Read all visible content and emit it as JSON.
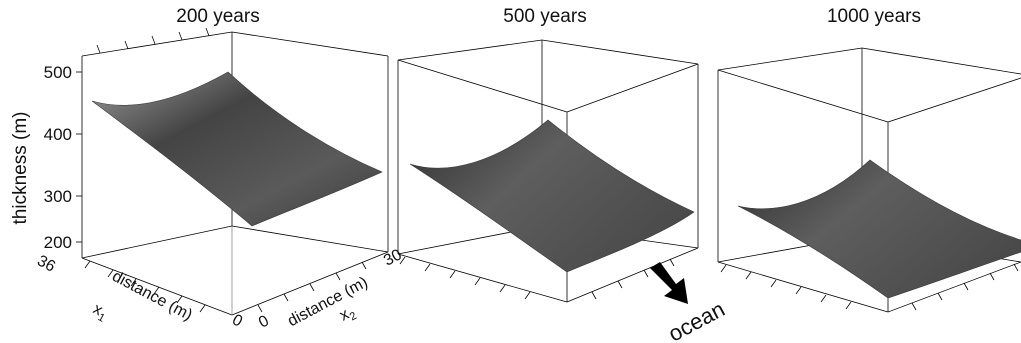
{
  "chart_data": {
    "type": "surface3d",
    "yaxis_label": "thickness (m)",
    "z_ticks": [
      "500",
      "400",
      "300",
      "200"
    ],
    "x1_axis": {
      "label": "distance (m)",
      "sublabel": "x",
      "subscript": "1",
      "ticks": [
        "36",
        "0"
      ]
    },
    "x2_axis": {
      "label": "distance (m)",
      "sublabel": "x",
      "subscript": "2",
      "ticks": [
        "0",
        "30"
      ]
    },
    "zlim": [
      180,
      520
    ],
    "panels": [
      {
        "title": "200 years",
        "thickness_at_x1_36_x2_0": 455,
        "thickness_at_x1_36_x2_30": 330,
        "thickness_at_x1_0_x2_0": 232,
        "max_thickness": 460
      },
      {
        "title": "500 years",
        "thickness_at_x1_36_x2_0": 330,
        "thickness_at_x1_36_x2_30": 265,
        "thickness_at_x1_0_x2_0": 235,
        "max_thickness": 335
      },
      {
        "title": "1000 years",
        "thickness_at_x1_36_x2_0": 260,
        "thickness_at_x1_36_x2_30": 238,
        "thickness_at_x1_0_x2_0": 225,
        "max_thickness": 262
      }
    ],
    "annotation": "ocean",
    "surface_color": "#555555"
  }
}
